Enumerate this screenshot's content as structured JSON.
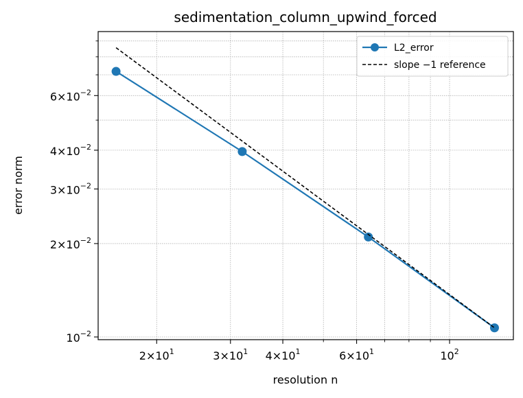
{
  "chart_data": {
    "type": "line",
    "title": "sedimentation_column_upwind_forced",
    "xlabel": "resolution n",
    "ylabel": "error norm",
    "xscale": "log",
    "yscale": "log",
    "xlim": [
      14.5,
      142
    ],
    "ylim": [
      0.0098,
      0.0965
    ],
    "grid": true,
    "legend_position": "top-right",
    "series": [
      {
        "name": "L2_error",
        "style": "solid-line-with-circle-markers",
        "color": "#1f77b4",
        "x": [
          16,
          32,
          64,
          128
        ],
        "y": [
          0.0718,
          0.0396,
          0.021,
          0.0107
        ]
      },
      {
        "name": "slope −1 reference",
        "style": "dashed",
        "color": "#000000",
        "x": [
          16,
          128
        ],
        "y": [
          0.0856,
          0.0107
        ]
      }
    ],
    "x_ticks": [
      {
        "value": 20,
        "base": "2×10",
        "exp": "1"
      },
      {
        "value": 30,
        "base": "3×10",
        "exp": "1"
      },
      {
        "value": 40,
        "base": "4×10",
        "exp": "1"
      },
      {
        "value": 60,
        "base": "6×10",
        "exp": "1"
      },
      {
        "value": 100,
        "base": "10",
        "exp": "2"
      }
    ],
    "y_ticks": [
      {
        "value": 0.01,
        "base": "10",
        "exp": "−2"
      },
      {
        "value": 0.02,
        "base": "2×10",
        "exp": "−2"
      },
      {
        "value": 0.03,
        "base": "3×10",
        "exp": "−2"
      },
      {
        "value": 0.04,
        "base": "4×10",
        "exp": "−2"
      },
      {
        "value": 0.06,
        "base": "6×10",
        "exp": "−2"
      }
    ],
    "x_minor_ticks": [
      50,
      70,
      80,
      90
    ],
    "y_minor_ticks": [
      0.05,
      0.07,
      0.08,
      0.09
    ]
  }
}
